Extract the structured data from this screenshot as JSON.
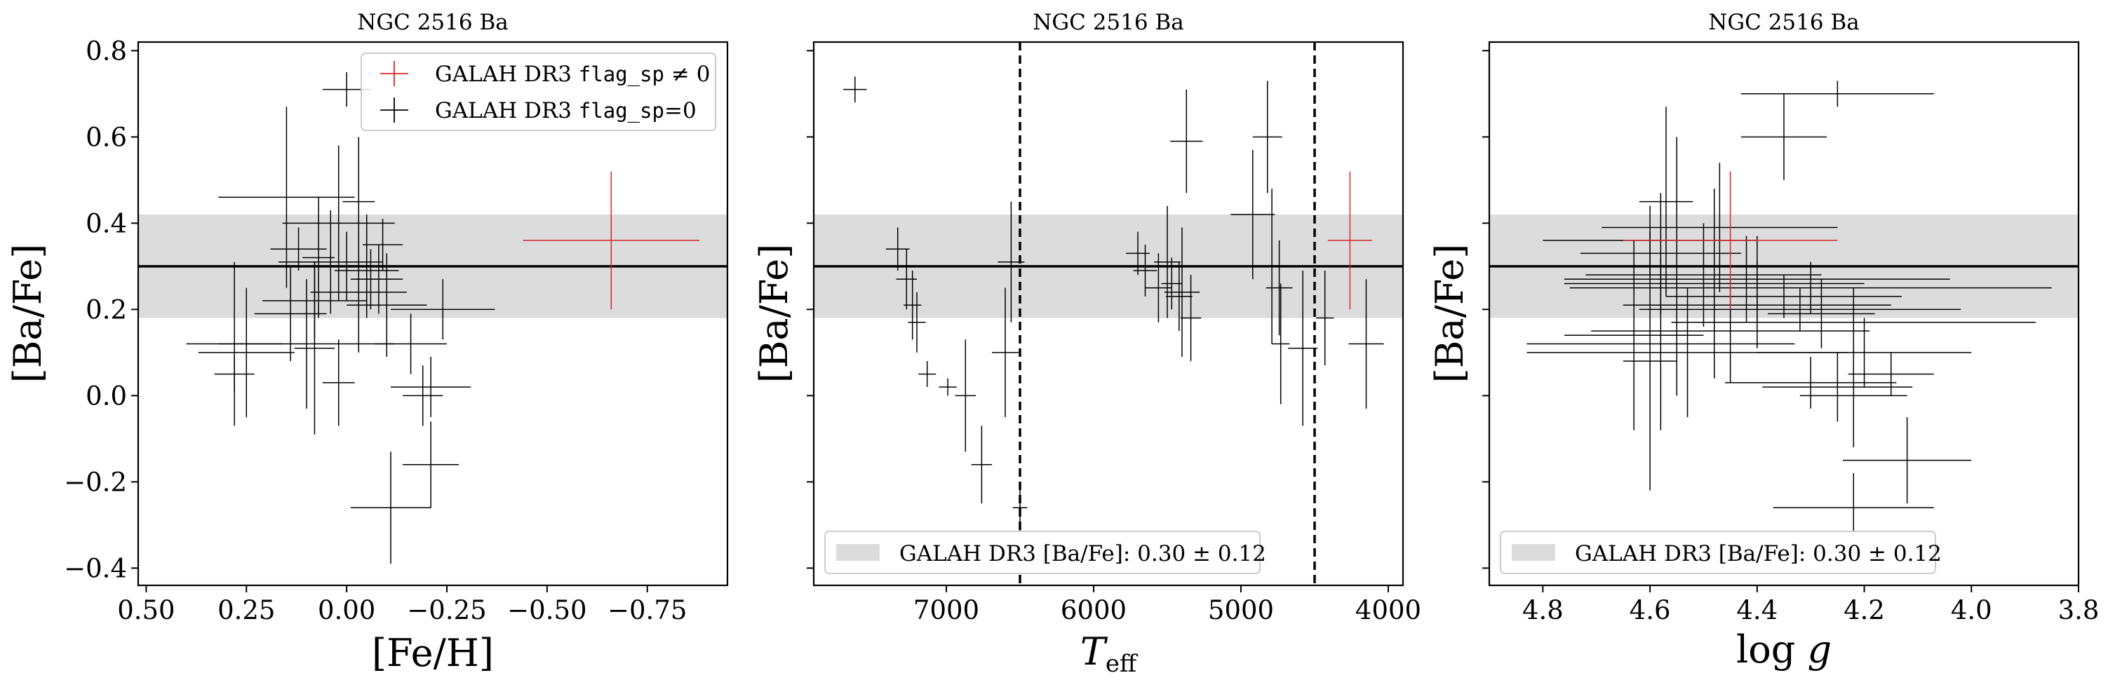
{
  "colors": {
    "black": "#000000",
    "red": "#d62728",
    "band": "#dcdcdc"
  },
  "reference": {
    "value": 0.3,
    "sigma": 0.12
  },
  "chart_data": [
    {
      "type": "scatter",
      "title": "NGC 2516 Ba",
      "xlabel": "[Fe/H]",
      "ylabel": "[Ba/Fe]",
      "xlim": [
        0.52,
        -0.95
      ],
      "ylim": [
        -0.44,
        0.82
      ],
      "xticks": [
        0.5,
        0.25,
        0.0,
        -0.25,
        -0.5,
        -0.75
      ],
      "xtick_labels": [
        "0.50",
        "0.25",
        "0.00",
        "−0.25",
        "−0.50",
        "−0.75"
      ],
      "yticks": [
        -0.4,
        -0.2,
        0.0,
        0.2,
        0.4,
        0.6,
        0.8
      ],
      "ytick_labels": [
        "−0.4",
        "−0.2",
        "0.0",
        "0.2",
        "0.4",
        "0.6",
        "0.8"
      ],
      "hline": 0.3,
      "band": [
        0.18,
        0.42
      ],
      "legend": {
        "position": "top-right",
        "items": [
          {
            "pre": "GALAH DR3 ",
            "code": "flag_sp",
            "post": " ≠ 0",
            "color": "#d62728"
          },
          {
            "pre": "GALAH DR3 ",
            "code": "flag_sp",
            "post": "=0",
            "color": "#000000"
          }
        ]
      },
      "series": [
        {
          "name": "GALAH DR3 flag_sp ≠ 0",
          "color": "#d62728",
          "points": [
            [
              -0.66,
              0.36,
              0.22,
              0.16
            ]
          ]
        },
        {
          "name": "GALAH DR3 flag_sp=0",
          "color": "#000000",
          "points": [
            [
              0.0,
              0.71,
              0.06,
              0.04
            ],
            [
              -0.03,
              0.45,
              0.04,
              0.15
            ],
            [
              0.15,
              0.46,
              0.17,
              0.21
            ],
            [
              0.02,
              0.4,
              0.14,
              0.18
            ],
            [
              0.04,
              0.31,
              0.13,
              0.12
            ],
            [
              0.12,
              0.34,
              0.07,
              0.05
            ],
            [
              -0.09,
              0.35,
              0.05,
              0.06
            ],
            [
              0.0,
              0.3,
              0.06,
              0.08
            ],
            [
              -0.05,
              0.29,
              0.08,
              0.1
            ],
            [
              -0.08,
              0.27,
              0.06,
              0.08
            ],
            [
              -0.03,
              0.24,
              0.12,
              0.14
            ],
            [
              0.08,
              0.22,
              0.13,
              0.09
            ],
            [
              -0.1,
              0.21,
              0.1,
              0.12
            ],
            [
              0.14,
              0.19,
              0.09,
              0.11
            ],
            [
              -0.24,
              0.2,
              0.13,
              0.07
            ],
            [
              0.1,
              0.12,
              0.22,
              0.15
            ],
            [
              -0.16,
              0.12,
              0.09,
              0.07
            ],
            [
              0.25,
              0.1,
              0.12,
              0.15
            ],
            [
              0.08,
              0.11,
              0.05,
              0.2
            ],
            [
              0.28,
              0.05,
              0.05,
              0.04
            ],
            [
              -0.21,
              0.02,
              0.1,
              0.07
            ],
            [
              -0.19,
              0.0,
              0.05,
              0.07
            ],
            [
              0.02,
              0.03,
              0.04,
              0.1
            ],
            [
              -0.11,
              -0.26,
              0.1,
              0.13
            ],
            [
              -0.21,
              -0.16,
              0.07,
              0.1
            ],
            [
              0.28,
              0.12,
              0.12,
              0.19
            ],
            [
              -0.05,
              0.3,
              0.05,
              0.12
            ],
            [
              0.07,
              0.32,
              0.04,
              0.14
            ],
            [
              -0.06,
              0.27,
              0.05,
              0.07
            ]
          ]
        }
      ]
    },
    {
      "type": "scatter",
      "title": "NGC 2516 Ba",
      "xlabel": "T_eff",
      "ylabel": "[Ba/Fe]",
      "xlim": [
        7900,
        3900
      ],
      "ylim": [
        -0.44,
        0.82
      ],
      "xticks": [
        7000,
        6000,
        5000,
        4000
      ],
      "xtick_labels": [
        "7000",
        "6000",
        "5000",
        "4000"
      ],
      "yticks": [
        -0.4,
        -0.2,
        0.0,
        0.2,
        0.4,
        0.6,
        0.8
      ],
      "hline": 0.3,
      "band": [
        0.18,
        0.42
      ],
      "vlines": [
        6500,
        4500
      ],
      "legend": {
        "position": "lower-left",
        "pre": "GALAH DR3 [Ba/Fe]: ",
        "value": "0.30 ± 0.12",
        "color": "#dcdcdc"
      },
      "series": [
        {
          "name": "GALAH DR3 flag_sp ≠ 0",
          "color": "#d62728",
          "points": [
            [
              4260,
              0.36,
              150,
              0.16
            ]
          ]
        },
        {
          "name": "GALAH DR3 flag_sp=0",
          "color": "#000000",
          "points": [
            [
              7620,
              0.71,
              80,
              0.03
            ],
            [
              7330,
              0.34,
              80,
              0.05
            ],
            [
              7270,
              0.27,
              70,
              0.07
            ],
            [
              7230,
              0.21,
              60,
              0.08
            ],
            [
              7200,
              0.17,
              60,
              0.07
            ],
            [
              7130,
              0.05,
              60,
              0.03
            ],
            [
              6990,
              0.02,
              60,
              0.02
            ],
            [
              6870,
              0.0,
              70,
              0.13
            ],
            [
              6760,
              -0.16,
              70,
              0.09
            ],
            [
              6600,
              0.1,
              90,
              0.15
            ],
            [
              6560,
              0.31,
              90,
              0.14
            ],
            [
              6500,
              -0.26,
              50,
              0.06
            ],
            [
              5700,
              0.33,
              80,
              0.05
            ],
            [
              5650,
              0.29,
              80,
              0.06
            ],
            [
              5560,
              0.25,
              90,
              0.08
            ],
            [
              5500,
              0.31,
              90,
              0.13
            ],
            [
              5470,
              0.26,
              70,
              0.06
            ],
            [
              5420,
              0.23,
              90,
              0.08
            ],
            [
              5400,
              0.24,
              120,
              0.15
            ],
            [
              5370,
              0.59,
              110,
              0.12
            ],
            [
              5340,
              0.18,
              70,
              0.1
            ],
            [
              4920,
              0.42,
              150,
              0.15
            ],
            [
              4820,
              0.6,
              100,
              0.13
            ],
            [
              4790,
              0.3,
              80,
              0.18
            ],
            [
              4740,
              0.25,
              90,
              0.11
            ],
            [
              4730,
              0.12,
              60,
              0.14
            ],
            [
              4580,
              0.11,
              100,
              0.18
            ],
            [
              4430,
              0.18,
              60,
              0.11
            ],
            [
              4150,
              0.12,
              120,
              0.15
            ]
          ]
        }
      ]
    },
    {
      "type": "scatter",
      "title": "NGC 2516 Ba",
      "xlabel": "log g",
      "ylabel": "[Ba/Fe]",
      "xlim": [
        4.9,
        3.8
      ],
      "ylim": [
        -0.44,
        0.82
      ],
      "xticks": [
        4.8,
        4.6,
        4.4,
        4.2,
        4.0,
        3.8
      ],
      "xtick_labels": [
        "4.8",
        "4.6",
        "4.4",
        "4.2",
        "4.0",
        "3.8"
      ],
      "yticks": [
        -0.4,
        -0.2,
        0.0,
        0.2,
        0.4,
        0.6,
        0.8
      ],
      "hline": 0.3,
      "band": [
        0.18,
        0.42
      ],
      "legend": {
        "position": "lower-left",
        "pre": "GALAH DR3 [Ba/Fe]: ",
        "value": "0.30 ± 0.12",
        "color": "#dcdcdc"
      },
      "series": [
        {
          "name": "GALAH DR3 flag_sp ≠ 0",
          "color": "#d62728",
          "points": [
            [
              4.45,
              0.36,
              0.2,
              0.16
            ]
          ]
        },
        {
          "name": "GALAH DR3 flag_sp=0",
          "color": "#000000",
          "points": [
            [
              4.25,
              0.7,
              0.18,
              0.03
            ],
            [
              4.35,
              0.6,
              0.08,
              0.1
            ],
            [
              4.57,
              0.45,
              0.05,
              0.22
            ],
            [
              4.47,
              0.39,
              0.22,
              0.15
            ],
            [
              4.6,
              0.36,
              0.2,
              0.08
            ],
            [
              4.58,
              0.33,
              0.15,
              0.14
            ],
            [
              4.55,
              0.3,
              0.1,
              0.3
            ],
            [
              4.5,
              0.28,
              0.22,
              0.12
            ],
            [
              4.42,
              0.27,
              0.23,
              0.1
            ],
            [
              4.48,
              0.26,
              0.28,
              0.22
            ],
            [
              4.3,
              0.25,
              0.45,
              0.06
            ],
            [
              4.35,
              0.23,
              0.22,
              0.05
            ],
            [
              4.4,
              0.21,
              0.25,
              0.1
            ],
            [
              4.32,
              0.2,
              0.3,
              0.05
            ],
            [
              4.28,
              0.19,
              0.1,
              0.08
            ],
            [
              4.22,
              0.17,
              0.34,
              0.08
            ],
            [
              4.45,
              0.15,
              0.26,
              0.12
            ],
            [
              4.63,
              0.14,
              0.13,
              0.22
            ],
            [
              4.58,
              0.12,
              0.25,
              0.2
            ],
            [
              4.53,
              0.1,
              0.3,
              0.15
            ],
            [
              4.2,
              0.1,
              0.2,
              0.08
            ],
            [
              4.6,
              0.08,
              0.05,
              0.3
            ],
            [
              4.15,
              0.05,
              0.08,
              0.05
            ],
            [
              4.22,
              0.0,
              0.1,
              0.12
            ],
            [
              4.3,
              0.03,
              0.16,
              0.06
            ],
            [
              4.25,
              0.02,
              0.14,
              0.08
            ],
            [
              4.12,
              -0.15,
              0.12,
              0.1
            ],
            [
              4.22,
              -0.26,
              0.15,
              0.08
            ],
            [
              4.4,
              0.27,
              0.36,
              0.1
            ]
          ]
        }
      ]
    }
  ]
}
